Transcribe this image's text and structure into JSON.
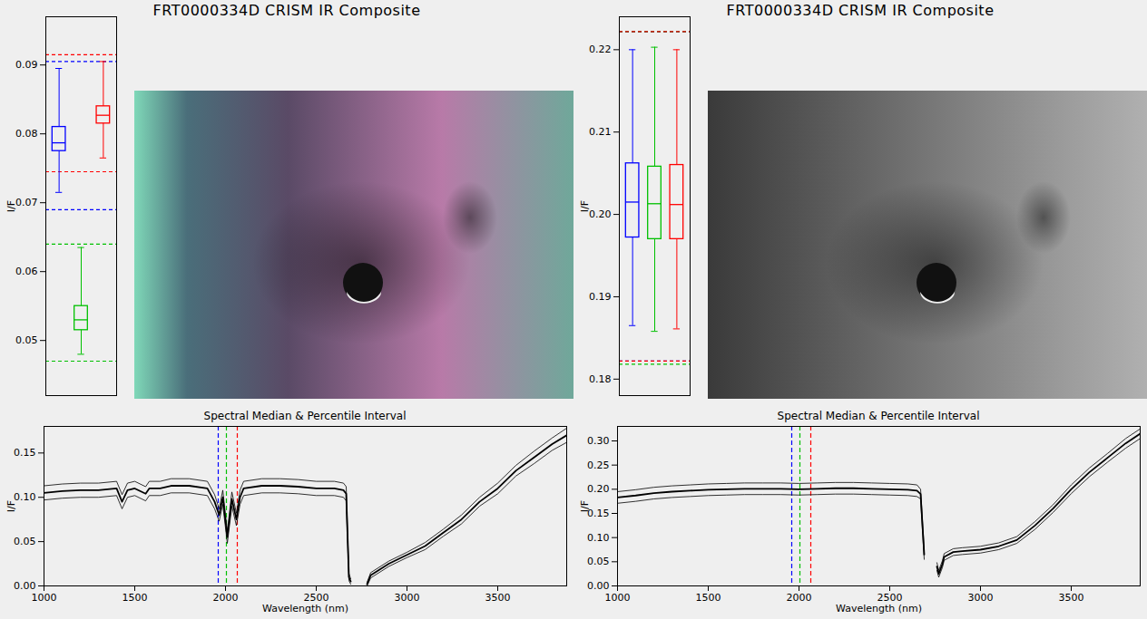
{
  "chart_data": [
    {
      "type": "box",
      "title": "FRT0000334D CRISM IR Composite",
      "y_label": "I/F",
      "ylim": [
        0.042,
        0.097
      ],
      "yticks": [
        0.05,
        0.06,
        0.07,
        0.08,
        0.09
      ],
      "series": [
        {
          "color": "#0000ff",
          "whisker_low": 0.0715,
          "q1": 0.0775,
          "median": 0.0787,
          "q3": 0.081,
          "whisker_high": 0.0895,
          "limits": [
            0.069,
            0.0905
          ]
        },
        {
          "color": "#00c000",
          "whisker_low": 0.048,
          "q1": 0.0515,
          "median": 0.053,
          "q3": 0.055,
          "whisker_high": 0.0635,
          "limits": [
            0.047,
            0.064
          ]
        },
        {
          "color": "#ff0000",
          "whisker_low": 0.0765,
          "q1": 0.0815,
          "median": 0.0827,
          "q3": 0.084,
          "whisker_high": 0.0905,
          "limits": [
            0.0745,
            0.0915
          ]
        }
      ]
    },
    {
      "type": "line",
      "title": "Spectral Median & Percentile Interval",
      "x_label": "Wavelength (nm)",
      "y_label": "I/F",
      "xlim": [
        1000,
        3880
      ],
      "xticks": [
        1000,
        1500,
        2000,
        2500,
        3000,
        3500
      ],
      "ylim": [
        0,
        0.18
      ],
      "yticks": [
        {
          "value": 0,
          "label": "0.00"
        },
        0.05,
        {
          "value": 0.1,
          "label": "0.10"
        },
        0.15
      ],
      "band_lines": [
        {
          "value": 1960,
          "color": "#0000ff"
        },
        {
          "value": 2005,
          "color": "#00c000"
        },
        {
          "value": 2065,
          "color": "#ff0000"
        }
      ],
      "x": [
        1000,
        1100,
        1200,
        1300,
        1400,
        1430,
        1460,
        1500,
        1560,
        1580,
        1640,
        1700,
        1800,
        1900,
        1940,
        1965,
        1985,
        2010,
        2035,
        2060,
        2080,
        2100,
        2200,
        2300,
        2400,
        2500,
        2600,
        2650,
        2665,
        2680,
        2690,
        2730,
        2780,
        2800,
        2900,
        3000,
        3100,
        3200,
        3300,
        3400,
        3500,
        3600,
        3700,
        3800,
        3880
      ],
      "series": [
        {
          "color": "#000000",
          "values": [
            0.105,
            0.107,
            0.108,
            0.108,
            0.11,
            0.095,
            0.108,
            0.11,
            0.104,
            0.11,
            0.11,
            0.113,
            0.113,
            0.11,
            0.095,
            0.08,
            0.1,
            0.055,
            0.098,
            0.075,
            0.1,
            0.11,
            0.113,
            0.113,
            0.112,
            0.11,
            0.11,
            0.108,
            0.104,
            0.01,
            0.005,
            null,
            0.002,
            0.012,
            0.025,
            0.035,
            0.045,
            0.06,
            0.075,
            0.095,
            0.11,
            0.13,
            0.145,
            0.16,
            0.17
          ]
        },
        {
          "color": "#000000",
          "values": [
            0.113,
            0.115,
            0.116,
            0.116,
            0.118,
            0.103,
            0.116,
            0.118,
            0.112,
            0.118,
            0.118,
            0.121,
            0.121,
            0.118,
            0.103,
            0.087,
            0.108,
            0.062,
            0.106,
            0.082,
            0.108,
            0.118,
            0.121,
            0.121,
            0.12,
            0.118,
            0.118,
            0.116,
            0.112,
            0.014,
            0.008,
            null,
            0.004,
            0.015,
            0.028,
            0.038,
            0.049,
            0.064,
            0.08,
            0.1,
            0.116,
            0.136,
            0.152,
            0.167,
            0.178
          ]
        },
        {
          "color": "#000000",
          "values": [
            0.097,
            0.099,
            0.1,
            0.1,
            0.102,
            0.087,
            0.1,
            0.102,
            0.096,
            0.102,
            0.102,
            0.105,
            0.105,
            0.102,
            0.087,
            0.073,
            0.092,
            0.048,
            0.09,
            0.068,
            0.092,
            0.102,
            0.105,
            0.105,
            0.104,
            0.102,
            0.102,
            0.1,
            0.096,
            0.006,
            0.002,
            null,
            0.0,
            0.009,
            0.022,
            0.032,
            0.041,
            0.056,
            0.07,
            0.09,
            0.104,
            0.124,
            0.138,
            0.153,
            0.162
          ]
        }
      ]
    },
    {
      "type": "box",
      "title": "FRT0000334D CRISM IR Composite",
      "y_label": "I/F",
      "ylim": [
        0.178,
        0.224
      ],
      "yticks": [
        0.18,
        0.19,
        {
          "value": 0.2,
          "label": "0.20"
        },
        0.21,
        0.22
      ],
      "series": [
        {
          "color": "#0000ff",
          "whisker_low": 0.1865,
          "q1": 0.1972,
          "median": 0.2015,
          "q3": 0.2062,
          "whisker_high": 0.22,
          "limits": [
            0.1822,
            0.2222
          ]
        },
        {
          "color": "#00c000",
          "whisker_low": 0.1858,
          "q1": 0.197,
          "median": 0.2013,
          "q3": 0.2058,
          "whisker_high": 0.2203,
          "limits": [
            0.1818,
            0.2222
          ]
        },
        {
          "color": "#ff0000",
          "whisker_low": 0.1861,
          "q1": 0.197,
          "median": 0.2012,
          "q3": 0.206,
          "whisker_high": 0.22,
          "limits": [
            0.1822,
            0.2222
          ]
        }
      ]
    },
    {
      "type": "line",
      "title": "Spectral Median & Percentile Interval",
      "x_label": "Wavelength (nm)",
      "y_label": "I/F",
      "xlim": [
        1000,
        3880
      ],
      "xticks": [
        1000,
        1500,
        2000,
        2500,
        3000,
        3500
      ],
      "ylim": [
        0,
        0.33
      ],
      "yticks": [
        {
          "value": 0,
          "label": "0.00"
        },
        0.05,
        {
          "value": 0.1,
          "label": "0.10"
        },
        0.15,
        {
          "value": 0.2,
          "label": "0.20"
        },
        0.25,
        {
          "value": 0.3,
          "label": "0.30"
        }
      ],
      "band_lines": [
        {
          "value": 1960,
          "color": "#0000ff"
        },
        {
          "value": 2005,
          "color": "#00c000"
        },
        {
          "value": 2065,
          "color": "#ff0000"
        }
      ],
      "x": [
        1000,
        1100,
        1200,
        1300,
        1400,
        1500,
        1600,
        1700,
        1800,
        1900,
        2000,
        2100,
        2200,
        2300,
        2400,
        2500,
        2600,
        2650,
        2670,
        2690,
        2730,
        2760,
        2770,
        2790,
        2800,
        2850,
        2900,
        3000,
        3100,
        3200,
        3300,
        3400,
        3500,
        3600,
        3700,
        3800,
        3880
      ],
      "series": [
        {
          "color": "#000000",
          "values": [
            0.183,
            0.187,
            0.192,
            0.195,
            0.197,
            0.199,
            0.2,
            0.201,
            0.201,
            0.201,
            0.2,
            0.201,
            0.202,
            0.202,
            0.201,
            0.2,
            0.199,
            0.197,
            0.19,
            0.065,
            null,
            0.04,
            0.025,
            0.045,
            0.06,
            0.07,
            0.072,
            0.075,
            0.082,
            0.095,
            0.125,
            0.16,
            0.2,
            0.235,
            0.265,
            0.295,
            0.315
          ]
        },
        {
          "color": "#000000",
          "values": [
            0.195,
            0.199,
            0.204,
            0.207,
            0.209,
            0.211,
            0.212,
            0.213,
            0.213,
            0.213,
            0.212,
            0.213,
            0.214,
            0.214,
            0.213,
            0.212,
            0.211,
            0.209,
            0.2,
            0.075,
            null,
            0.048,
            0.032,
            0.052,
            0.067,
            0.077,
            0.079,
            0.082,
            0.089,
            0.102,
            0.133,
            0.168,
            0.209,
            0.244,
            0.274,
            0.305,
            0.325
          ]
        },
        {
          "color": "#000000",
          "values": [
            0.171,
            0.175,
            0.18,
            0.183,
            0.185,
            0.187,
            0.188,
            0.189,
            0.189,
            0.189,
            0.188,
            0.189,
            0.19,
            0.19,
            0.189,
            0.188,
            0.187,
            0.185,
            0.18,
            0.055,
            null,
            0.032,
            0.018,
            0.038,
            0.053,
            0.063,
            0.065,
            0.068,
            0.075,
            0.088,
            0.117,
            0.152,
            0.191,
            0.226,
            0.256,
            0.285,
            0.305
          ]
        }
      ]
    }
  ]
}
